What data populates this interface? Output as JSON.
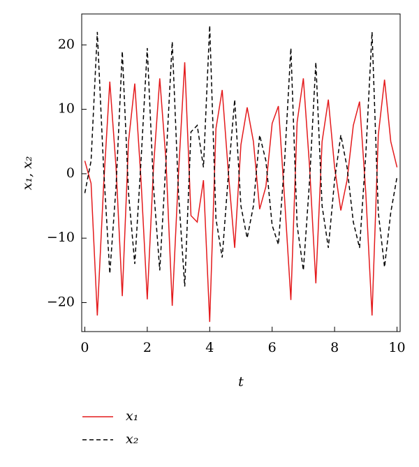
{
  "chart_data": {
    "type": "line",
    "xlabel": "t",
    "ylabel": "x₁, x₂",
    "x": [
      0,
      0.2,
      0.4,
      0.6,
      0.8,
      1,
      1.2,
      1.4,
      1.6,
      1.8,
      2,
      2.2,
      2.4,
      2.6,
      2.8,
      3,
      3.2,
      3.4,
      3.6,
      3.8,
      4,
      4.2,
      4.4,
      4.6,
      4.8,
      5,
      5.2,
      5.4,
      5.6,
      5.8,
      6,
      6.2,
      6.4,
      6.6,
      6.8,
      7,
      7.2,
      7.4,
      7.6,
      7.8,
      8,
      8.2,
      8.4,
      8.6,
      8.8,
      9,
      9.2,
      9.4,
      9.6,
      9.8,
      10
    ],
    "series": [
      {
        "name": "x₁",
        "color": "#e41a1c",
        "dash": "solid",
        "values": [
          2,
          -1.5,
          -22,
          -2,
          14.3,
          1,
          -19,
          5,
          14,
          -1,
          -19.5,
          1,
          14.8,
          2,
          -20.5,
          0,
          17.3,
          -6.5,
          -7.5,
          -1,
          -23,
          7,
          13,
          0,
          -11.5,
          4.5,
          10.3,
          5,
          -5.5,
          -2,
          7.8,
          10.5,
          -4,
          -19.6,
          8,
          14.8,
          1,
          -17,
          5,
          11.5,
          1,
          -5.7,
          -1,
          7.5,
          11.2,
          -3,
          -22,
          6,
          14.6,
          5,
          1
        ]
      },
      {
        "name": "x₂",
        "color": "#000000",
        "dash": "dashed",
        "values": [
          -3,
          2,
          22,
          1,
          -15.5,
          -2,
          19,
          -3,
          -14,
          2,
          19.5,
          -2,
          -15,
          2,
          20.5,
          -3,
          -17.5,
          6.5,
          7.5,
          1,
          23,
          -7,
          -13,
          0,
          11.5,
          -5,
          -10,
          -5,
          6,
          2,
          -8,
          -11,
          2,
          19.5,
          -8,
          -15,
          -1,
          17.3,
          -5,
          -11.5,
          -1,
          6,
          1,
          -7.5,
          -11.5,
          3,
          22,
          -6,
          -14.5,
          -6,
          -0.5
        ]
      }
    ],
    "xlim": [
      -0.1,
      10.1
    ],
    "xticks": [
      0,
      2,
      4,
      6,
      8,
      10
    ],
    "ylim": [
      -24.5,
      24.8
    ],
    "yticks": [
      {
        "value": -20,
        "label": "−20"
      },
      {
        "value": -10,
        "label": "−10"
      },
      0,
      10,
      20
    ]
  }
}
